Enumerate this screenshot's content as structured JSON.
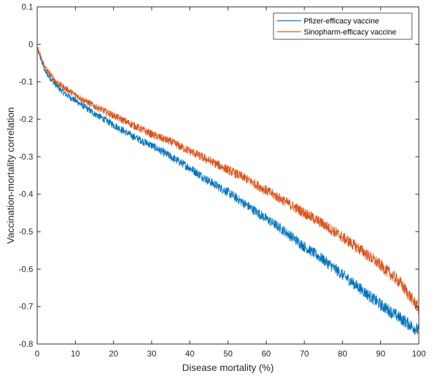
{
  "chart_data": {
    "type": "line",
    "xlabel": "Disease mortality (%)",
    "ylabel": "Vaccination-mortality correlation",
    "xlim": [
      0,
      100
    ],
    "ylim": [
      -0.8,
      0.1
    ],
    "xticks": [
      0,
      10,
      20,
      30,
      40,
      50,
      60,
      70,
      80,
      90,
      100
    ],
    "xtick_labels": [
      "0",
      "10",
      "20",
      "30",
      "40",
      "50",
      "60",
      "70",
      "80",
      "90",
      "100"
    ],
    "yticks": [
      0.1,
      0,
      -0.1,
      -0.2,
      -0.3,
      -0.4,
      -0.5,
      -0.6,
      -0.7,
      -0.8
    ],
    "ytick_labels": [
      "0.1",
      "0",
      "-0.1",
      "-0.2",
      "-0.3",
      "-0.4",
      "-0.5",
      "-0.6",
      "-0.7",
      "-0.8"
    ],
    "grid": false,
    "legend_position": "top-right",
    "series": [
      {
        "name": "Pfizer-efficacy vaccine",
        "color": "#0072BD",
        "noise": 0.008,
        "x": [
          0,
          1,
          2,
          3,
          5,
          7,
          10,
          15,
          20,
          25,
          30,
          35,
          40,
          45,
          50,
          55,
          60,
          65,
          70,
          75,
          80,
          85,
          90,
          95,
          100
        ],
        "y": [
          -0.01,
          -0.04,
          -0.07,
          -0.085,
          -0.11,
          -0.13,
          -0.15,
          -0.185,
          -0.215,
          -0.245,
          -0.27,
          -0.3,
          -0.33,
          -0.365,
          -0.395,
          -0.43,
          -0.465,
          -0.5,
          -0.54,
          -0.575,
          -0.615,
          -0.655,
          -0.695,
          -0.73,
          -0.765
        ]
      },
      {
        "name": "Sinopharm-efficacy vaccine",
        "color": "#D95319",
        "noise": 0.008,
        "x": [
          0,
          1,
          2,
          3,
          5,
          7,
          10,
          15,
          20,
          25,
          30,
          35,
          40,
          45,
          50,
          55,
          60,
          65,
          70,
          75,
          80,
          85,
          90,
          95,
          100
        ],
        "y": [
          -0.01,
          -0.035,
          -0.06,
          -0.075,
          -0.1,
          -0.115,
          -0.135,
          -0.165,
          -0.19,
          -0.215,
          -0.24,
          -0.26,
          -0.285,
          -0.31,
          -0.335,
          -0.36,
          -0.39,
          -0.42,
          -0.45,
          -0.48,
          -0.515,
          -0.55,
          -0.59,
          -0.635,
          -0.705
        ]
      }
    ]
  }
}
